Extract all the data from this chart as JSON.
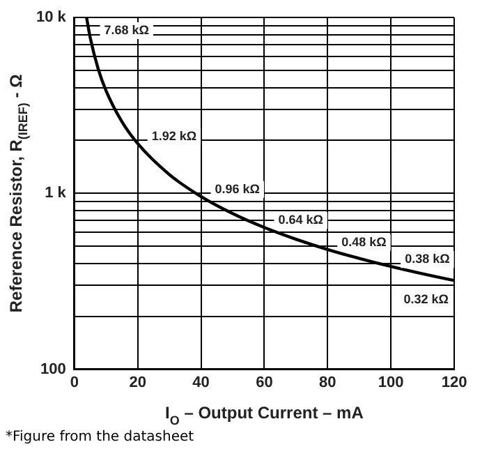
{
  "chart_data": {
    "type": "line",
    "xlabel": "I$_{O}$ – Output Current – mA",
    "ylabel": "Reference Resistor, R$_{(IREF)}$ - Ω",
    "x": [
      3.84,
      5,
      7.5,
      10,
      15,
      20,
      30,
      40,
      50,
      60,
      70,
      80,
      90,
      100,
      110,
      120
    ],
    "series": [
      {
        "color": "#000000",
        "values": [
          10000,
          7680,
          5120,
          3840,
          2560,
          1920,
          1280,
          960,
          768,
          640,
          549,
          480,
          427,
          384,
          349,
          320
        ]
      }
    ],
    "xlim": [
      0,
      120
    ],
    "xticks": [
      0,
      20,
      40,
      60,
      80,
      100,
      120
    ],
    "ylim": [
      100,
      10000
    ],
    "log": "y",
    "yticks": [
      {
        "value": 100,
        "label": "100"
      },
      {
        "value": 200,
        "label": null
      },
      {
        "value": 300,
        "label": null
      },
      {
        "value": 400,
        "label": null
      },
      {
        "value": 500,
        "label": null
      },
      {
        "value": 600,
        "label": null
      },
      {
        "value": 700,
        "label": null
      },
      {
        "value": 800,
        "label": null
      },
      {
        "value": 900,
        "label": null
      },
      {
        "value": 1000,
        "label": "1 k"
      },
      {
        "value": 2000,
        "label": null
      },
      {
        "value": 3000,
        "label": null
      },
      {
        "value": 4000,
        "label": null
      },
      {
        "value": 5000,
        "label": null
      },
      {
        "value": 6000,
        "label": null
      },
      {
        "value": 7000,
        "label": null
      },
      {
        "value": 8000,
        "label": null
      },
      {
        "value": 9000,
        "label": null
      },
      {
        "value": 10000,
        "label": "10 k"
      }
    ],
    "grid": true,
    "legend": false,
    "marker": "none",
    "line_style": "solid",
    "annotations": [
      {
        "text": "7.68 kΩ",
        "x": 5,
        "y": 7680
      },
      {
        "text": "1.92 kΩ",
        "x": 20,
        "y": 1920
      },
      {
        "text": "0.96 kΩ",
        "x": 40,
        "y": 960
      },
      {
        "text": "0.64 kΩ",
        "x": 60,
        "y": 640
      },
      {
        "text": "0.48 kΩ",
        "x": 80,
        "y": 480
      },
      {
        "text": "0.38 kΩ",
        "x": 100,
        "y": 384
      },
      {
        "text": "0.32 kΩ",
        "x": 120,
        "y": 320
      },
      "*Figure from the datasheet"
    ]
  }
}
